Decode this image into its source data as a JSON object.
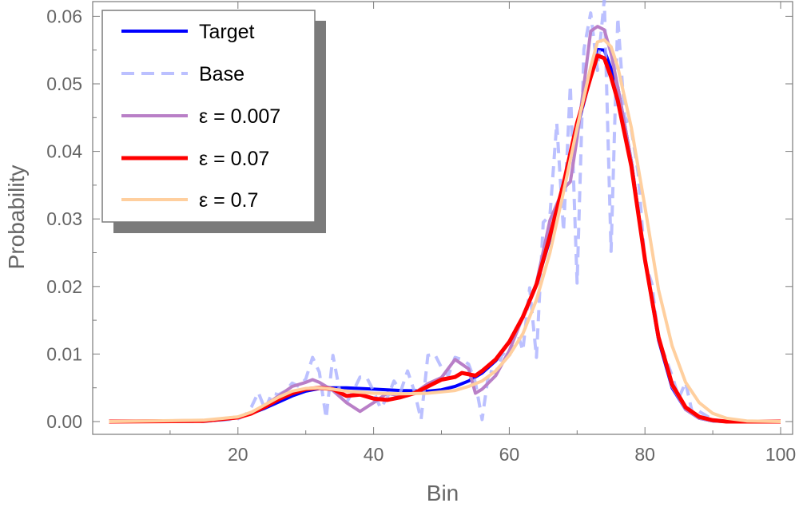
{
  "chart_data": {
    "type": "line",
    "title": "",
    "xlabel": "Bin",
    "ylabel": "Probability",
    "xlim": [
      0,
      100
    ],
    "ylim": [
      0,
      0.0625
    ],
    "x_ticks": [
      "20",
      "40",
      "60",
      "80",
      "100"
    ],
    "x_tick_values": [
      20,
      40,
      60,
      80,
      100
    ],
    "y_ticks": [
      "0.00",
      "0.01",
      "0.02",
      "0.03",
      "0.04",
      "0.05",
      "0.06"
    ],
    "y_tick_values": [
      0,
      0.01,
      0.02,
      0.03,
      0.04,
      0.05,
      0.06
    ],
    "grid": false,
    "legend_position": "top-left",
    "series": [
      {
        "name": "Target",
        "color": "#0000ff",
        "dash": "solid",
        "opacity": 1,
        "points": [
          [
            1,
            0
          ],
          [
            10,
            0
          ],
          [
            15,
            0.0001
          ],
          [
            18,
            0.0003
          ],
          [
            20,
            0.0006
          ],
          [
            22,
            0.0012
          ],
          [
            24,
            0.002
          ],
          [
            26,
            0.0029
          ],
          [
            28,
            0.0038
          ],
          [
            30,
            0.0045
          ],
          [
            32,
            0.0049
          ],
          [
            34,
            0.005
          ],
          [
            36,
            0.005
          ],
          [
            40,
            0.0048
          ],
          [
            44,
            0.0046
          ],
          [
            48,
            0.0045
          ],
          [
            50,
            0.0047
          ],
          [
            52,
            0.0052
          ],
          [
            54,
            0.006
          ],
          [
            56,
            0.0072
          ],
          [
            58,
            0.009
          ],
          [
            60,
            0.0118
          ],
          [
            62,
            0.0155
          ],
          [
            64,
            0.0203
          ],
          [
            66,
            0.027
          ],
          [
            68,
            0.035
          ],
          [
            70,
            0.0435
          ],
          [
            72,
            0.051
          ],
          [
            73,
            0.0551
          ],
          [
            74,
            0.055
          ],
          [
            76,
            0.0495
          ],
          [
            78,
            0.0385
          ],
          [
            80,
            0.024
          ],
          [
            82,
            0.0121
          ],
          [
            84,
            0.005
          ],
          [
            86,
            0.0018
          ],
          [
            88,
            0.0005
          ],
          [
            90,
            0.0001
          ],
          [
            92,
            0
          ],
          [
            100,
            0
          ]
        ]
      },
      {
        "name": "Base",
        "color": "#aab0ff",
        "dash": "dashed",
        "opacity": 0.8,
        "points": [
          [
            1,
            0
          ],
          [
            15,
            0
          ],
          [
            20,
            0.0004
          ],
          [
            21,
            0.0009
          ],
          [
            22,
            0.0022
          ],
          [
            23,
            0.0043
          ],
          [
            24,
            0.0018
          ],
          [
            25,
            0.0042
          ],
          [
            26,
            0.004
          ],
          [
            27,
            0.0045
          ],
          [
            28,
            0.0057
          ],
          [
            29,
            0.0052
          ],
          [
            30,
            0.0063
          ],
          [
            31,
            0.0095
          ],
          [
            32,
            0.0073
          ],
          [
            33,
            0.0005
          ],
          [
            34,
            0.0098
          ],
          [
            35,
            0.0045
          ],
          [
            36,
            0.0028
          ],
          [
            37,
            0.0045
          ],
          [
            38,
            0.0066
          ],
          [
            39,
            0.0065
          ],
          [
            40,
            0.0045
          ],
          [
            41,
            0.002
          ],
          [
            42,
            0.0035
          ],
          [
            43,
            0.006
          ],
          [
            44,
            0.0045
          ],
          [
            45,
            0.0075
          ],
          [
            46,
            0.0045
          ],
          [
            47,
            0.0003
          ],
          [
            48,
            0.0098
          ],
          [
            49,
            0.01
          ],
          [
            50,
            0.008
          ],
          [
            51,
            0.0068
          ],
          [
            52,
            0.0095
          ],
          [
            53,
            0.0092
          ],
          [
            54,
            0.0085
          ],
          [
            55,
            0.0058
          ],
          [
            56,
            0.0003
          ],
          [
            57,
            0.0075
          ],
          [
            58,
            0.0072
          ],
          [
            59,
            0.0101
          ],
          [
            60,
            0.0095
          ],
          [
            61,
            0.0138
          ],
          [
            62,
            0.0105
          ],
          [
            63,
            0.0198
          ],
          [
            64,
            0.0095
          ],
          [
            65,
            0.0295
          ],
          [
            66,
            0.0305
          ],
          [
            67,
            0.0442
          ],
          [
            68,
            0.0282
          ],
          [
            69,
            0.0498
          ],
          [
            70,
            0.0205
          ],
          [
            71,
            0.0551
          ],
          [
            72,
            0.0605
          ],
          [
            73,
            0.052
          ],
          [
            74,
            0.0625
          ],
          [
            75,
            0.0252
          ],
          [
            76,
            0.0598
          ],
          [
            77,
            0.0452
          ],
          [
            78,
            0.0432
          ],
          [
            79,
            0.0368
          ],
          [
            80,
            0.0235
          ],
          [
            81,
            0.0205
          ],
          [
            82,
            0.0122
          ],
          [
            83,
            0.0095
          ],
          [
            84,
            0.0068
          ],
          [
            85,
            0.0035
          ],
          [
            86,
            0.0058
          ],
          [
            87,
            0.0012
          ],
          [
            88,
            0.0015
          ],
          [
            90,
            0.0003
          ],
          [
            92,
            0
          ],
          [
            100,
            0
          ]
        ]
      },
      {
        "name": "ε = 0.007",
        "color": "#b97fc7",
        "dash": "solid",
        "opacity": 1,
        "points": [
          [
            1,
            0
          ],
          [
            15,
            0.0001
          ],
          [
            20,
            0.0006
          ],
          [
            22,
            0.0012
          ],
          [
            24,
            0.0024
          ],
          [
            26,
            0.0038
          ],
          [
            28,
            0.0052
          ],
          [
            30,
            0.0058
          ],
          [
            31,
            0.0062
          ],
          [
            32,
            0.0058
          ],
          [
            34,
            0.0046
          ],
          [
            36,
            0.0028
          ],
          [
            38,
            0.0015
          ],
          [
            40,
            0.0028
          ],
          [
            42,
            0.0042
          ],
          [
            44,
            0.0038
          ],
          [
            46,
            0.0042
          ],
          [
            48,
            0.0056
          ],
          [
            50,
            0.0065
          ],
          [
            52,
            0.0092
          ],
          [
            54,
            0.0078
          ],
          [
            55,
            0.0042
          ],
          [
            56,
            0.0048
          ],
          [
            58,
            0.0068
          ],
          [
            60,
            0.0105
          ],
          [
            62,
            0.0155
          ],
          [
            64,
            0.0205
          ],
          [
            66,
            0.0298
          ],
          [
            68,
            0.0345
          ],
          [
            69,
            0.0355
          ],
          [
            70,
            0.042
          ],
          [
            71,
            0.0498
          ],
          [
            72,
            0.0578
          ],
          [
            73,
            0.0585
          ],
          [
            74,
            0.058
          ],
          [
            75,
            0.0545
          ],
          [
            76,
            0.0495
          ],
          [
            78,
            0.0385
          ],
          [
            80,
            0.024
          ],
          [
            82,
            0.0125
          ],
          [
            84,
            0.0052
          ],
          [
            86,
            0.0018
          ],
          [
            88,
            0.0005
          ],
          [
            90,
            0.0001
          ],
          [
            92,
            0
          ],
          [
            100,
            0
          ]
        ]
      },
      {
        "name": "ε = 0.07",
        "color": "#ff0000",
        "dash": "solid",
        "opacity": 1,
        "points": [
          [
            1,
            0
          ],
          [
            15,
            0.0001
          ],
          [
            20,
            0.0006
          ],
          [
            22,
            0.0012
          ],
          [
            24,
            0.0022
          ],
          [
            26,
            0.0033
          ],
          [
            28,
            0.0042
          ],
          [
            30,
            0.0048
          ],
          [
            32,
            0.005
          ],
          [
            34,
            0.0048
          ],
          [
            36,
            0.0038
          ],
          [
            38,
            0.004
          ],
          [
            40,
            0.0034
          ],
          [
            42,
            0.0032
          ],
          [
            44,
            0.0036
          ],
          [
            46,
            0.0042
          ],
          [
            48,
            0.0052
          ],
          [
            50,
            0.0062
          ],
          [
            52,
            0.0066
          ],
          [
            53,
            0.0072
          ],
          [
            55,
            0.0068
          ],
          [
            56,
            0.0075
          ],
          [
            58,
            0.0092
          ],
          [
            60,
            0.0118
          ],
          [
            62,
            0.0155
          ],
          [
            64,
            0.0203
          ],
          [
            66,
            0.0275
          ],
          [
            68,
            0.0352
          ],
          [
            70,
            0.0442
          ],
          [
            72,
            0.051
          ],
          [
            73,
            0.0542
          ],
          [
            74,
            0.0538
          ],
          [
            75,
            0.051
          ],
          [
            76,
            0.0475
          ],
          [
            78,
            0.0378
          ],
          [
            80,
            0.024
          ],
          [
            82,
            0.0125
          ],
          [
            84,
            0.0055
          ],
          [
            86,
            0.0021
          ],
          [
            88,
            0.0007
          ],
          [
            90,
            0.0002
          ],
          [
            92,
            0
          ],
          [
            100,
            0
          ]
        ]
      },
      {
        "name": "ε = 0.7",
        "color": "#ffcf9e",
        "dash": "solid",
        "opacity": 1,
        "points": [
          [
            1,
            0
          ],
          [
            15,
            0.0002
          ],
          [
            20,
            0.0007
          ],
          [
            22,
            0.0014
          ],
          [
            24,
            0.0025
          ],
          [
            26,
            0.0036
          ],
          [
            28,
            0.0045
          ],
          [
            30,
            0.0049
          ],
          [
            32,
            0.005
          ],
          [
            34,
            0.0048
          ],
          [
            36,
            0.0045
          ],
          [
            40,
            0.0042
          ],
          [
            44,
            0.0041
          ],
          [
            48,
            0.0042
          ],
          [
            52,
            0.0046
          ],
          [
            54,
            0.0052
          ],
          [
            56,
            0.006
          ],
          [
            58,
            0.0075
          ],
          [
            60,
            0.0098
          ],
          [
            62,
            0.013
          ],
          [
            64,
            0.018
          ],
          [
            66,
            0.025
          ],
          [
            68,
            0.034
          ],
          [
            70,
            0.0435
          ],
          [
            72,
            0.0525
          ],
          [
            73,
            0.0562
          ],
          [
            74,
            0.0565
          ],
          [
            75,
            0.0555
          ],
          [
            76,
            0.0525
          ],
          [
            78,
            0.0435
          ],
          [
            80,
            0.0318
          ],
          [
            82,
            0.0195
          ],
          [
            84,
            0.0112
          ],
          [
            86,
            0.0058
          ],
          [
            88,
            0.0028
          ],
          [
            90,
            0.0012
          ],
          [
            92,
            0.0005
          ],
          [
            95,
            0.0001
          ],
          [
            100,
            0
          ]
        ]
      }
    ]
  }
}
